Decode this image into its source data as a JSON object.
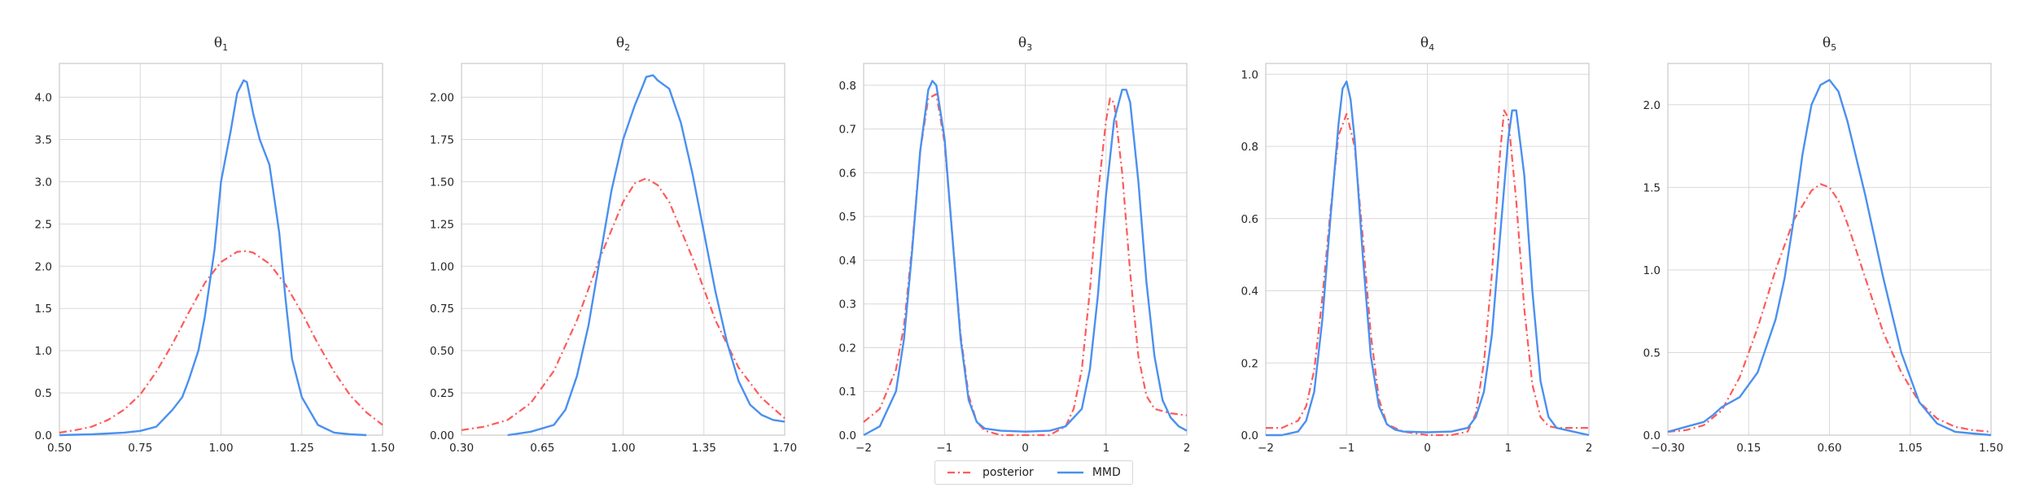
{
  "colors": {
    "posterior": "#ff5a5a",
    "mmd": "#4a90f0",
    "grid": "#d9d9d9",
    "axis": "#bfbfbf"
  },
  "legend": {
    "placement": "bottom-center",
    "posterior_label": "posterior",
    "mmd_label": "MMD"
  },
  "chart_data": [
    {
      "type": "line",
      "title": "θ₁",
      "title_base": "θ",
      "title_sub": "1",
      "xlim": [
        0.5,
        1.5
      ],
      "ylim": [
        0,
        4.4
      ],
      "xticks": [
        0.5,
        0.75,
        1.0,
        1.25,
        1.5
      ],
      "xtick_labels": [
        "0.50",
        "0.75",
        "1.00",
        "1.25",
        "1.50"
      ],
      "yticks": [
        0,
        0.5,
        1.0,
        1.5,
        2.0,
        2.5,
        3.0,
        3.5,
        4.0
      ],
      "ytick_labels": [
        "0.0",
        "0.5",
        "1.0",
        "1.5",
        "2.0",
        "2.5",
        "3.0",
        "3.5",
        "4.0"
      ],
      "series": [
        {
          "name": "posterior",
          "style": "dashdot",
          "x": [
            0.5,
            0.55,
            0.6,
            0.65,
            0.7,
            0.75,
            0.8,
            0.85,
            0.9,
            0.95,
            1.0,
            1.05,
            1.08,
            1.1,
            1.15,
            1.2,
            1.25,
            1.3,
            1.35,
            1.4,
            1.45,
            1.5
          ],
          "y": [
            0.03,
            0.06,
            0.1,
            0.18,
            0.3,
            0.48,
            0.75,
            1.08,
            1.45,
            1.8,
            2.05,
            2.17,
            2.18,
            2.16,
            2.03,
            1.78,
            1.45,
            1.08,
            0.75,
            0.47,
            0.27,
            0.12
          ]
        },
        {
          "name": "MMD",
          "style": "solid",
          "x": [
            0.5,
            0.6,
            0.7,
            0.75,
            0.8,
            0.82,
            0.85,
            0.88,
            0.9,
            0.93,
            0.95,
            0.98,
            1.0,
            1.03,
            1.05,
            1.07,
            1.08,
            1.1,
            1.12,
            1.15,
            1.18,
            1.2,
            1.22,
            1.25,
            1.3,
            1.35,
            1.4,
            1.45
          ],
          "y": [
            0.0,
            0.01,
            0.03,
            0.05,
            0.1,
            0.18,
            0.3,
            0.45,
            0.65,
            1.0,
            1.4,
            2.2,
            3.0,
            3.6,
            4.05,
            4.2,
            4.18,
            3.8,
            3.5,
            3.2,
            2.4,
            1.6,
            0.9,
            0.45,
            0.12,
            0.03,
            0.01,
            0.0
          ]
        }
      ]
    },
    {
      "type": "line",
      "title": "θ₂",
      "title_base": "θ",
      "title_sub": "2",
      "xlim": [
        0.3,
        1.7
      ],
      "ylim": [
        0,
        2.2
      ],
      "xticks": [
        0.3,
        0.65,
        1.0,
        1.35,
        1.7
      ],
      "xtick_labels": [
        "0.30",
        "0.65",
        "1.00",
        "1.35",
        "1.70"
      ],
      "yticks": [
        0,
        0.25,
        0.5,
        0.75,
        1.0,
        1.25,
        1.5,
        1.75,
        2.0
      ],
      "ytick_labels": [
        "0.00",
        "0.25",
        "0.50",
        "0.75",
        "1.00",
        "1.25",
        "1.50",
        "1.75",
        "2.00"
      ],
      "series": [
        {
          "name": "posterior",
          "style": "dashdot",
          "x": [
            0.3,
            0.4,
            0.5,
            0.6,
            0.7,
            0.8,
            0.9,
            1.0,
            1.05,
            1.1,
            1.15,
            1.2,
            1.3,
            1.4,
            1.5,
            1.6,
            1.7
          ],
          "y": [
            0.03,
            0.05,
            0.09,
            0.19,
            0.38,
            0.68,
            1.05,
            1.38,
            1.49,
            1.52,
            1.48,
            1.38,
            1.05,
            0.68,
            0.4,
            0.22,
            0.1
          ]
        },
        {
          "name": "MMD",
          "style": "solid",
          "x": [
            0.5,
            0.6,
            0.7,
            0.75,
            0.8,
            0.85,
            0.9,
            0.95,
            1.0,
            1.05,
            1.08,
            1.1,
            1.13,
            1.15,
            1.2,
            1.25,
            1.3,
            1.35,
            1.4,
            1.45,
            1.5,
            1.55,
            1.6,
            1.65,
            1.7
          ],
          "y": [
            0.0,
            0.02,
            0.06,
            0.15,
            0.35,
            0.65,
            1.05,
            1.45,
            1.75,
            1.95,
            2.05,
            2.12,
            2.13,
            2.1,
            2.05,
            1.85,
            1.55,
            1.2,
            0.85,
            0.55,
            0.32,
            0.18,
            0.12,
            0.09,
            0.08
          ]
        }
      ]
    },
    {
      "type": "line",
      "title": "θ₃",
      "title_base": "θ",
      "title_sub": "3",
      "xlim": [
        -2,
        2
      ],
      "ylim": [
        0,
        0.85
      ],
      "xticks": [
        -2,
        -1,
        0,
        1,
        2
      ],
      "xtick_labels": [
        "−2",
        "−1",
        "0",
        "1",
        "2"
      ],
      "yticks": [
        0,
        0.1,
        0.2,
        0.3,
        0.4,
        0.5,
        0.6,
        0.7,
        0.8
      ],
      "ytick_labels": [
        "0.0",
        "0.1",
        "0.2",
        "0.3",
        "0.4",
        "0.5",
        "0.6",
        "0.7",
        "0.8"
      ],
      "series": [
        {
          "name": "posterior",
          "style": "dashdot",
          "x": [
            -2.0,
            -1.8,
            -1.6,
            -1.5,
            -1.4,
            -1.3,
            -1.2,
            -1.1,
            -1.0,
            -0.9,
            -0.8,
            -0.7,
            -0.6,
            -0.5,
            -0.3,
            0.0,
            0.3,
            0.5,
            0.6,
            0.7,
            0.8,
            0.9,
            1.0,
            1.05,
            1.1,
            1.2,
            1.3,
            1.4,
            1.5,
            1.6,
            1.8,
            2.0
          ],
          "y": [
            0.03,
            0.06,
            0.15,
            0.25,
            0.43,
            0.65,
            0.77,
            0.78,
            0.67,
            0.45,
            0.23,
            0.09,
            0.03,
            0.01,
            0.0,
            0.0,
            0.0,
            0.02,
            0.06,
            0.15,
            0.33,
            0.55,
            0.72,
            0.77,
            0.76,
            0.6,
            0.37,
            0.18,
            0.09,
            0.06,
            0.05,
            0.045
          ]
        },
        {
          "name": "MMD",
          "style": "solid",
          "x": [
            -2.0,
            -1.8,
            -1.6,
            -1.5,
            -1.4,
            -1.3,
            -1.2,
            -1.15,
            -1.1,
            -1.0,
            -0.9,
            -0.8,
            -0.7,
            -0.6,
            -0.5,
            -0.3,
            0.0,
            0.3,
            0.5,
            0.7,
            0.8,
            0.9,
            1.0,
            1.1,
            1.2,
            1.25,
            1.3,
            1.4,
            1.5,
            1.6,
            1.7,
            1.8,
            1.9,
            2.0
          ],
          "y": [
            0.0,
            0.02,
            0.1,
            0.22,
            0.42,
            0.65,
            0.79,
            0.81,
            0.8,
            0.68,
            0.45,
            0.22,
            0.08,
            0.03,
            0.015,
            0.01,
            0.008,
            0.01,
            0.02,
            0.06,
            0.15,
            0.32,
            0.55,
            0.72,
            0.79,
            0.79,
            0.76,
            0.58,
            0.35,
            0.18,
            0.08,
            0.04,
            0.02,
            0.01
          ]
        }
      ]
    },
    {
      "type": "line",
      "title": "θ₄",
      "title_base": "θ",
      "title_sub": "4",
      "xlim": [
        -2,
        2
      ],
      "ylim": [
        0,
        1.03
      ],
      "xticks": [
        -2,
        -1,
        0,
        1,
        2
      ],
      "xtick_labels": [
        "−2",
        "−1",
        "0",
        "1",
        "2"
      ],
      "yticks": [
        0,
        0.2,
        0.4,
        0.6,
        0.8,
        1.0
      ],
      "ytick_labels": [
        "0.0",
        "0.2",
        "0.4",
        "0.6",
        "0.8",
        "1.0"
      ],
      "series": [
        {
          "name": "posterior",
          "style": "dashdot",
          "x": [
            -2.0,
            -1.8,
            -1.6,
            -1.5,
            -1.4,
            -1.3,
            -1.2,
            -1.1,
            -1.0,
            -0.9,
            -0.8,
            -0.7,
            -0.6,
            -0.5,
            -0.3,
            0.0,
            0.3,
            0.5,
            0.6,
            0.7,
            0.8,
            0.9,
            0.95,
            1.0,
            1.1,
            1.2,
            1.3,
            1.4,
            1.5,
            1.6,
            1.8,
            2.0
          ],
          "y": [
            0.02,
            0.02,
            0.04,
            0.08,
            0.18,
            0.38,
            0.62,
            0.83,
            0.89,
            0.8,
            0.55,
            0.28,
            0.1,
            0.03,
            0.01,
            0.0,
            0.0,
            0.01,
            0.06,
            0.2,
            0.45,
            0.78,
            0.9,
            0.88,
            0.65,
            0.35,
            0.14,
            0.05,
            0.025,
            0.02,
            0.02,
            0.02
          ]
        },
        {
          "name": "MMD",
          "style": "solid",
          "x": [
            -2.0,
            -1.8,
            -1.6,
            -1.5,
            -1.4,
            -1.3,
            -1.2,
            -1.1,
            -1.05,
            -1.0,
            -0.95,
            -0.9,
            -0.8,
            -0.7,
            -0.6,
            -0.5,
            -0.4,
            -0.3,
            0.0,
            0.3,
            0.5,
            0.6,
            0.7,
            0.8,
            0.9,
            1.0,
            1.05,
            1.1,
            1.2,
            1.3,
            1.4,
            1.5,
            1.6,
            1.8,
            2.0
          ],
          "y": [
            0.0,
            0.0,
            0.01,
            0.04,
            0.12,
            0.32,
            0.6,
            0.86,
            0.96,
            0.98,
            0.93,
            0.82,
            0.5,
            0.22,
            0.08,
            0.03,
            0.015,
            0.01,
            0.008,
            0.01,
            0.02,
            0.05,
            0.12,
            0.28,
            0.55,
            0.82,
            0.9,
            0.9,
            0.72,
            0.4,
            0.15,
            0.05,
            0.02,
            0.01,
            0.0
          ]
        }
      ]
    },
    {
      "type": "line",
      "title": "θ₅",
      "title_base": "θ",
      "title_sub": "5",
      "xlim": [
        -0.3,
        1.5
      ],
      "ylim": [
        0,
        2.25
      ],
      "xticks": [
        -0.3,
        0.15,
        0.6,
        1.05,
        1.5
      ],
      "xtick_labels": [
        "−0.30",
        "0.15",
        "0.60",
        "1.05",
        "1.50"
      ],
      "yticks": [
        0,
        0.5,
        1.0,
        1.5,
        2.0
      ],
      "ytick_labels": [
        "0.0",
        "0.5",
        "1.0",
        "1.5",
        "2.0"
      ],
      "series": [
        {
          "name": "posterior",
          "style": "dashdot",
          "x": [
            -0.3,
            -0.2,
            -0.1,
            0.0,
            0.1,
            0.2,
            0.3,
            0.4,
            0.5,
            0.55,
            0.6,
            0.65,
            0.7,
            0.8,
            0.9,
            1.0,
            1.1,
            1.2,
            1.3,
            1.4,
            1.5
          ],
          "y": [
            0.02,
            0.03,
            0.06,
            0.15,
            0.35,
            0.65,
            1.0,
            1.3,
            1.48,
            1.52,
            1.5,
            1.42,
            1.28,
            0.95,
            0.62,
            0.38,
            0.2,
            0.1,
            0.05,
            0.03,
            0.02
          ]
        },
        {
          "name": "MMD",
          "style": "solid",
          "x": [
            -0.3,
            -0.2,
            -0.1,
            -0.05,
            0.0,
            0.1,
            0.2,
            0.3,
            0.35,
            0.4,
            0.45,
            0.5,
            0.55,
            0.6,
            0.65,
            0.7,
            0.8,
            0.9,
            1.0,
            1.1,
            1.2,
            1.3,
            1.4,
            1.5
          ],
          "y": [
            0.02,
            0.05,
            0.08,
            0.12,
            0.17,
            0.23,
            0.38,
            0.7,
            0.95,
            1.3,
            1.7,
            2.0,
            2.12,
            2.15,
            2.08,
            1.9,
            1.45,
            0.95,
            0.5,
            0.2,
            0.07,
            0.02,
            0.01,
            0.0
          ]
        }
      ]
    }
  ]
}
